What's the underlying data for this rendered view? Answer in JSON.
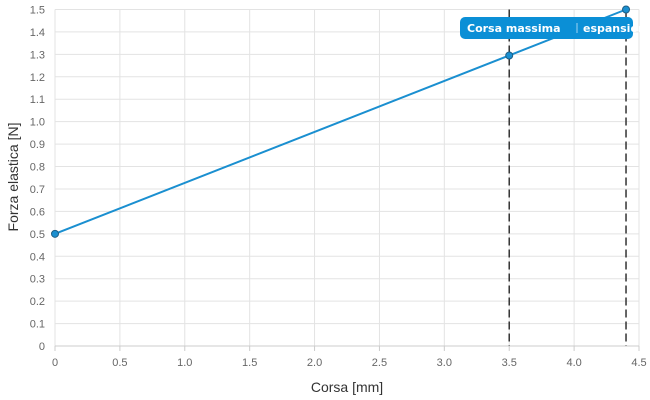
{
  "chart_data": {
    "type": "line",
    "xlabel": "Corsa [mm]",
    "ylabel": "Forza elastica [N]",
    "xlim": [
      0,
      4.5
    ],
    "ylim": [
      0,
      1.5
    ],
    "x_ticks": [
      "0",
      "0.5",
      "1.0",
      "1.5",
      "2.0",
      "2.5",
      "3.0",
      "3.5",
      "4.0",
      "4.5"
    ],
    "y_ticks": [
      "0",
      "0.1",
      "0.2",
      "0.3",
      "0.4",
      "0.5",
      "0.6",
      "0.7",
      "0.8",
      "0.9",
      "1.0",
      "1.1",
      "1.2",
      "1.3",
      "1.4",
      "1.5"
    ],
    "grid": true,
    "series": [
      {
        "color": "#1a8fd0",
        "points": [
          {
            "x": 0,
            "y": 0.5
          },
          {
            "x": 3.5,
            "y": 1.295
          },
          {
            "x": 4.4,
            "y": 1.5
          }
        ]
      }
    ],
    "reference_lines": [
      {
        "x": 3.5,
        "label": "Corsa massima"
      },
      {
        "x": 4.4,
        "label": "espansione"
      }
    ],
    "badge_color": "#0b8fd6"
  }
}
